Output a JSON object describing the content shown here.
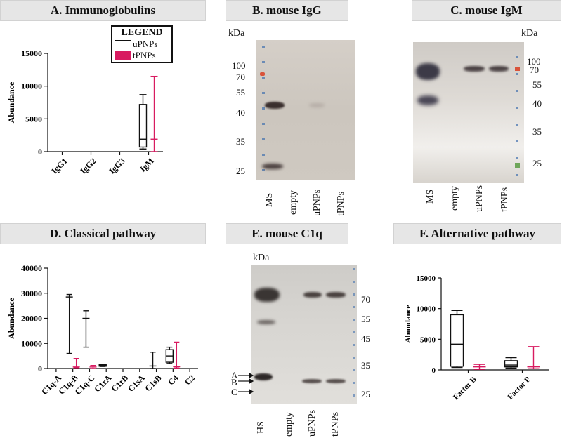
{
  "colors": {
    "upnp": "#111111",
    "tpnp": "#d81b60",
    "ladderBlue": "#3f6fae",
    "ladderRed": "#d9533a",
    "ladderGreen": "#6fa65a"
  },
  "panels": {
    "A": {
      "title": "A. Immunoglobulins"
    },
    "B": {
      "title": "B. mouse IgG"
    },
    "C": {
      "title": "C. mouse IgM"
    },
    "D": {
      "title": "D. Classical pathway"
    },
    "E": {
      "title": "E. mouse C1q"
    },
    "F": {
      "title": "F.  Alternative pathway"
    }
  },
  "legend": {
    "title": "LEGEND",
    "items": [
      "uPNPs",
      "tPNPs"
    ]
  },
  "blots": {
    "B": {
      "kda": "kDa",
      "markers": [
        "100",
        "70",
        "55",
        "40",
        "35",
        "25"
      ],
      "lanes": [
        "MS",
        "empty",
        "uPNPs",
        "tPNPs"
      ]
    },
    "C": {
      "kda": "kDa",
      "markers": [
        "100",
        "70",
        "55",
        "40",
        "35",
        "25"
      ],
      "lanes": [
        "MS",
        "empty",
        "uPNPs",
        "tPNPs"
      ]
    },
    "E": {
      "kda": "kDa",
      "markers": [
        "70",
        "55",
        "45",
        "35",
        "25"
      ],
      "lanes": [
        "HS",
        "empty",
        "uPNPs",
        "tPNPs"
      ],
      "arrows": [
        "A",
        "B",
        "C"
      ]
    }
  },
  "chart_data": [
    {
      "panel": "A",
      "type": "box",
      "ylabel": "Abundance",
      "ylim": [
        0,
        15000
      ],
      "yticks": [
        "0",
        "5000",
        "10000",
        "15000"
      ],
      "categories": [
        "IgG1",
        "IgG2",
        "IgG3",
        "IgM"
      ],
      "series": [
        {
          "name": "uPNPs",
          "boxes": [
            null,
            null,
            null,
            {
              "min": 400,
              "q1": 700,
              "median": 1900,
              "q3": 7200,
              "max": 8700
            }
          ]
        },
        {
          "name": "tPNPs",
          "boxes": [
            null,
            null,
            null,
            {
              "min": 0,
              "q1": 1900,
              "median": 1900,
              "q3": 1900,
              "max": 11500
            }
          ]
        }
      ]
    },
    {
      "panel": "D",
      "type": "box",
      "ylabel": "Abundance",
      "ylim": [
        0,
        40000
      ],
      "yticks": [
        "0",
        "10000",
        "20000",
        "30000",
        "40000"
      ],
      "categories": [
        "C1q-A",
        "C1q-B",
        "C1q-C",
        "C1rA",
        "C1rB",
        "C1sA",
        "C1sB",
        "C4",
        "C2"
      ],
      "series": [
        {
          "name": "uPNPs",
          "boxes": [
            null,
            {
              "min": 6000,
              "q1": 28500,
              "median": 28500,
              "q3": 28500,
              "max": 29500
            },
            {
              "min": 8500,
              "q1": 20000,
              "median": 20000,
              "q3": 20000,
              "max": 23000
            },
            {
              "min": 800,
              "q1": 900,
              "median": 1200,
              "q3": 1500,
              "max": 1700
            },
            null,
            null,
            {
              "min": 0,
              "q1": 1000,
              "median": 1000,
              "q3": 1000,
              "max": 6500
            },
            {
              "min": 2000,
              "q1": 2500,
              "median": 5000,
              "q3": 7500,
              "max": 8500
            },
            null
          ]
        },
        {
          "name": "tPNPs",
          "boxes": [
            null,
            {
              "min": 300,
              "q1": 600,
              "median": 600,
              "q3": 600,
              "max": 4000
            },
            {
              "min": 0,
              "q1": 600,
              "median": 600,
              "q3": 600,
              "max": 1200
            },
            null,
            null,
            null,
            null,
            {
              "min": 200,
              "q1": 700,
              "median": 700,
              "q3": 700,
              "max": 10500
            },
            null
          ]
        }
      ]
    },
    {
      "panel": "F",
      "type": "box",
      "ylabel": "Abundance",
      "ylim": [
        0,
        15000
      ],
      "yticks": [
        "0",
        "5000",
        "10000",
        "15000"
      ],
      "categories": [
        "Factor B",
        "Factor P"
      ],
      "series": [
        {
          "name": "uPNPs",
          "boxes": [
            {
              "min": 400,
              "q1": 600,
              "median": 4200,
              "q3": 9000,
              "max": 9700
            },
            {
              "min": 300,
              "q1": 500,
              "median": 800,
              "q3": 1500,
              "max": 2000
            }
          ]
        },
        {
          "name": "tPNPs",
          "boxes": [
            {
              "min": 100,
              "q1": 500,
              "median": 500,
              "q3": 500,
              "max": 900
            },
            {
              "min": 200,
              "q1": 500,
              "median": 500,
              "q3": 500,
              "max": 3800
            }
          ]
        }
      ]
    }
  ]
}
